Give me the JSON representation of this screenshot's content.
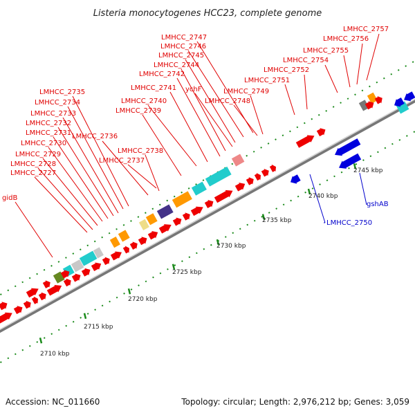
{
  "title": "Listeria monocytogenes HCC23, complete genome",
  "footer": {
    "accession": "Accession: NC_011660",
    "summary": "Topology: circular; Length: 2,976,212 bp; Genes: 3,059"
  },
  "colors": {
    "forward_cds": "#ee0000",
    "reverse_cds": "#0000dd",
    "red_label": "#e00000",
    "blue_label": "#0000cc",
    "backbone": "#888888",
    "tick": "#1a8a1a",
    "cog_cyan": "#22cccc",
    "cog_orange": "#ff9900",
    "cog_gray": "#777777",
    "cog_lightgray": "#c8c8c8",
    "cog_olive": "#668822",
    "cog_yellow": "#eedd88",
    "cog_purple": "#443388",
    "cog_pink": "#ee8888"
  },
  "scale_labels": [
    {
      "text": "2710 kbp"
    },
    {
      "text": "2715 kbp"
    },
    {
      "text": "2720 kbp"
    },
    {
      "text": "2725 kbp"
    },
    {
      "text": "2730 kbp"
    },
    {
      "text": "2735 kbp"
    },
    {
      "text": "2740 kbp"
    },
    {
      "text": "2745 kbp"
    }
  ],
  "gene_labels_forward": [
    {
      "text": "gidB"
    },
    {
      "text": "LMHCC_2727"
    },
    {
      "text": "LMHCC_2728"
    },
    {
      "text": "LMHCC_2729"
    },
    {
      "text": "LMHCC_2730"
    },
    {
      "text": "LMHCC_2731"
    },
    {
      "text": "LMHCC_2732"
    },
    {
      "text": "LMHCC_2733"
    },
    {
      "text": "LMHCC_2734"
    },
    {
      "text": "LMHCC_2735"
    },
    {
      "text": "LMHCC_2736"
    },
    {
      "text": "LMHCC_2737"
    },
    {
      "text": "LMHCC_2738"
    },
    {
      "text": "LMHCC_2739"
    },
    {
      "text": "LMHCC_2740"
    },
    {
      "text": "LMHCC_2741"
    },
    {
      "text": "LMHCC_2742"
    },
    {
      "text": "ychF"
    },
    {
      "text": "LMHCC_2744"
    },
    {
      "text": "LMHCC_2745"
    },
    {
      "text": "LMHCC_2746"
    },
    {
      "text": "LMHCC_2747"
    },
    {
      "text": "LMHCC_2748"
    },
    {
      "text": "LMHCC_2749"
    },
    {
      "text": "LMHCC_2751"
    },
    {
      "text": "LMHCC_2752"
    },
    {
      "text": "LMHCC_2754"
    },
    {
      "text": "LMHCC_2755"
    },
    {
      "text": "LMHCC_2756"
    },
    {
      "text": "LMHCC_2757"
    }
  ],
  "gene_labels_reverse": [
    {
      "text": "LMHCC_2750"
    },
    {
      "text": "gshAB"
    }
  ]
}
